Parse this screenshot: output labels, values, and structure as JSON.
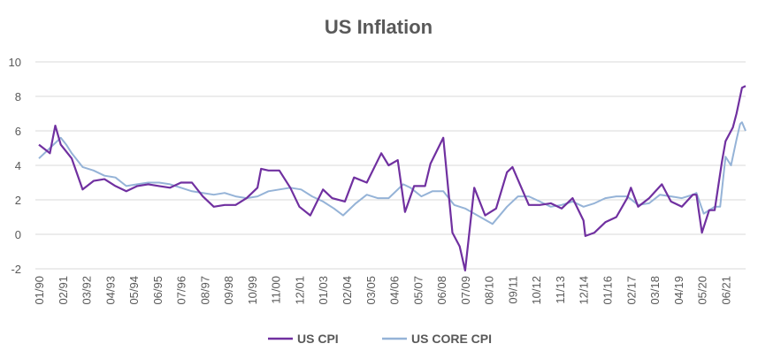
{
  "chart_data": {
    "type": "line",
    "title": "US Inflation",
    "xlabel": "",
    "ylabel": "",
    "ylim": [
      -2,
      10
    ],
    "yticks": [
      -2,
      0,
      2,
      4,
      6,
      8,
      10
    ],
    "grid": true,
    "legend_position": "bottom",
    "x_tick_labels": [
      "01/90",
      "02/91",
      "03/92",
      "04/93",
      "05/94",
      "06/95",
      "07/96",
      "08/97",
      "09/98",
      "10/99",
      "11/00",
      "12/01",
      "01/03",
      "02/04",
      "03/05",
      "04/06",
      "05/07",
      "06/08",
      "07/09",
      "08/10",
      "09/11",
      "10/12",
      "11/13",
      "12/14",
      "01/16",
      "02/17",
      "03/18",
      "04/19",
      "05/20",
      "06/21"
    ],
    "series": [
      {
        "name": "US CPI",
        "color": "#7030a0",
        "points": [
          [
            "01/90",
            5.2
          ],
          [
            "07/90",
            4.7
          ],
          [
            "10/90",
            6.3
          ],
          [
            "01/91",
            5.2
          ],
          [
            "07/91",
            4.4
          ],
          [
            "01/92",
            2.6
          ],
          [
            "07/92",
            3.1
          ],
          [
            "01/93",
            3.2
          ],
          [
            "07/93",
            2.8
          ],
          [
            "01/94",
            2.5
          ],
          [
            "07/94",
            2.8
          ],
          [
            "01/95",
            2.9
          ],
          [
            "07/95",
            2.8
          ],
          [
            "01/96",
            2.7
          ],
          [
            "07/96",
            3.0
          ],
          [
            "01/97",
            3.0
          ],
          [
            "07/97",
            2.2
          ],
          [
            "01/98",
            1.6
          ],
          [
            "07/98",
            1.7
          ],
          [
            "01/99",
            1.7
          ],
          [
            "07/99",
            2.1
          ],
          [
            "01/00",
            2.7
          ],
          [
            "03/00",
            3.8
          ],
          [
            "07/00",
            3.7
          ],
          [
            "01/01",
            3.7
          ],
          [
            "07/01",
            2.7
          ],
          [
            "12/01",
            1.6
          ],
          [
            "06/02",
            1.1
          ],
          [
            "01/03",
            2.6
          ],
          [
            "06/03",
            2.1
          ],
          [
            "01/04",
            1.9
          ],
          [
            "06/04",
            3.3
          ],
          [
            "01/05",
            3.0
          ],
          [
            "09/05",
            4.7
          ],
          [
            "01/06",
            4.0
          ],
          [
            "06/06",
            4.3
          ],
          [
            "10/06",
            1.3
          ],
          [
            "03/07",
            2.8
          ],
          [
            "09/07",
            2.8
          ],
          [
            "12/07",
            4.1
          ],
          [
            "07/08",
            5.6
          ],
          [
            "12/08",
            0.1
          ],
          [
            "04/09",
            -0.7
          ],
          [
            "07/09",
            -2.1
          ],
          [
            "12/09",
            2.7
          ],
          [
            "06/10",
            1.1
          ],
          [
            "12/10",
            1.5
          ],
          [
            "06/11",
            3.6
          ],
          [
            "09/11",
            3.9
          ],
          [
            "06/12",
            1.7
          ],
          [
            "12/12",
            1.7
          ],
          [
            "06/13",
            1.8
          ],
          [
            "12/13",
            1.5
          ],
          [
            "06/14",
            2.1
          ],
          [
            "12/14",
            0.8
          ],
          [
            "01/15",
            -0.1
          ],
          [
            "06/15",
            0.1
          ],
          [
            "12/15",
            0.7
          ],
          [
            "06/16",
            1.0
          ],
          [
            "12/16",
            2.1
          ],
          [
            "02/17",
            2.7
          ],
          [
            "06/17",
            1.6
          ],
          [
            "12/17",
            2.1
          ],
          [
            "07/18",
            2.9
          ],
          [
            "12/18",
            1.9
          ],
          [
            "06/19",
            1.6
          ],
          [
            "12/19",
            2.3
          ],
          [
            "02/20",
            2.3
          ],
          [
            "05/20",
            0.1
          ],
          [
            "09/20",
            1.4
          ],
          [
            "12/20",
            1.4
          ],
          [
            "04/21",
            4.2
          ],
          [
            "06/21",
            5.4
          ],
          [
            "10/21",
            6.2
          ],
          [
            "12/21",
            7.0
          ],
          [
            "03/22",
            8.5
          ],
          [
            "05/22",
            8.6
          ]
        ]
      },
      {
        "name": "US CORE CPI",
        "color": "#95b3d7",
        "points": [
          [
            "01/90",
            4.4
          ],
          [
            "07/90",
            5.0
          ],
          [
            "01/91",
            5.6
          ],
          [
            "04/91",
            5.2
          ],
          [
            "07/91",
            4.7
          ],
          [
            "01/92",
            3.9
          ],
          [
            "07/92",
            3.7
          ],
          [
            "01/93",
            3.4
          ],
          [
            "07/93",
            3.3
          ],
          [
            "01/94",
            2.8
          ],
          [
            "07/94",
            2.9
          ],
          [
            "01/95",
            3.0
          ],
          [
            "07/95",
            3.0
          ],
          [
            "01/96",
            2.9
          ],
          [
            "07/96",
            2.7
          ],
          [
            "01/97",
            2.5
          ],
          [
            "07/97",
            2.4
          ],
          [
            "01/98",
            2.3
          ],
          [
            "07/98",
            2.4
          ],
          [
            "01/99",
            2.2
          ],
          [
            "07/99",
            2.1
          ],
          [
            "01/00",
            2.2
          ],
          [
            "07/00",
            2.5
          ],
          [
            "01/01",
            2.6
          ],
          [
            "07/01",
            2.7
          ],
          [
            "01/02",
            2.6
          ],
          [
            "07/02",
            2.2
          ],
          [
            "01/03",
            1.9
          ],
          [
            "07/03",
            1.5
          ],
          [
            "12/03",
            1.1
          ],
          [
            "07/04",
            1.8
          ],
          [
            "01/05",
            2.3
          ],
          [
            "07/05",
            2.1
          ],
          [
            "01/06",
            2.1
          ],
          [
            "09/06",
            2.9
          ],
          [
            "01/07",
            2.7
          ],
          [
            "07/07",
            2.2
          ],
          [
            "01/08",
            2.5
          ],
          [
            "07/08",
            2.5
          ],
          [
            "01/09",
            1.7
          ],
          [
            "07/09",
            1.5
          ],
          [
            "10/10",
            0.6
          ],
          [
            "06/11",
            1.6
          ],
          [
            "12/11",
            2.2
          ],
          [
            "06/12",
            2.2
          ],
          [
            "12/12",
            1.9
          ],
          [
            "06/13",
            1.6
          ],
          [
            "12/13",
            1.7
          ],
          [
            "06/14",
            1.9
          ],
          [
            "12/14",
            1.6
          ],
          [
            "06/15",
            1.8
          ],
          [
            "12/15",
            2.1
          ],
          [
            "06/16",
            2.2
          ],
          [
            "12/16",
            2.2
          ],
          [
            "06/17",
            1.7
          ],
          [
            "12/17",
            1.8
          ],
          [
            "06/18",
            2.3
          ],
          [
            "12/18",
            2.2
          ],
          [
            "06/19",
            2.1
          ],
          [
            "12/19",
            2.3
          ],
          [
            "02/20",
            2.4
          ],
          [
            "06/20",
            1.2
          ],
          [
            "12/20",
            1.6
          ],
          [
            "03/21",
            1.6
          ],
          [
            "06/21",
            4.5
          ],
          [
            "09/21",
            4.0
          ],
          [
            "12/21",
            5.5
          ],
          [
            "02/22",
            6.4
          ],
          [
            "03/22",
            6.5
          ],
          [
            "05/22",
            6.0
          ]
        ]
      }
    ]
  }
}
